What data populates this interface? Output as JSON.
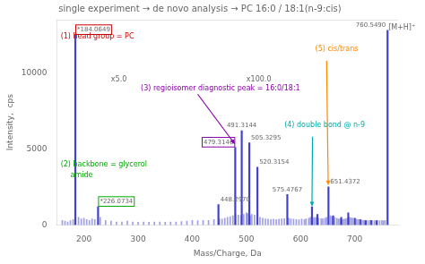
{
  "chart_data": {
    "type": "bar",
    "title": "single experiment → de novo analysis → PC 16:0 / 18:1(n-9:cis)",
    "x_label": "Mass/Charge, Da",
    "y_label": "Intensity,  cps",
    "xlim": [
      150,
      780
    ],
    "ylim": [
      0,
      13500
    ],
    "xticks": [
      200,
      300,
      400,
      500,
      600,
      700
    ],
    "yticks": [
      0,
      5000,
      10000
    ],
    "grid": false,
    "series": [
      {
        "color": "#4040cc",
        "x": [
          160,
          165,
          170,
          175,
          180,
          190,
          195,
          200,
          205,
          210,
          215,
          220,
          230,
          240,
          250,
          260,
          270,
          280,
          290,
          300,
          310,
          320,
          330,
          340,
          350,
          360,
          370,
          380,
          390,
          400,
          410,
          420,
          430,
          440,
          450,
          455,
          460,
          465,
          470,
          475,
          480,
          485,
          490,
          495,
          500,
          502,
          507,
          510,
          515,
          525,
          530,
          535,
          540,
          545,
          550,
          555,
          560,
          565,
          570,
          578,
          582,
          587,
          592,
          597,
          602,
          607,
          610,
          615,
          618,
          622,
          625,
          628,
          633,
          638,
          641,
          645,
          648,
          655,
          658,
          663,
          667,
          670,
          673,
          677,
          680,
          683,
          686,
          690,
          693,
          696,
          703,
          706,
          713,
          716,
          719,
          722,
          726,
          732,
          736,
          742,
          746,
          750,
          753,
          756
        ],
        "values": [
          300,
          250,
          200,
          280,
          350,
          500,
          400,
          450,
          350,
          300,
          400,
          350,
          500,
          300,
          250,
          200,
          200,
          250,
          200,
          180,
          200,
          180,
          200,
          200,
          180,
          200,
          200,
          220,
          250,
          300,
          280,
          300,
          300,
          350,
          400,
          380,
          450,
          500,
          550,
          600,
          700,
          650,
          600,
          700,
          800,
          750,
          600,
          700,
          650,
          500,
          450,
          400,
          380,
          350,
          380,
          350,
          380,
          400,
          420,
          450,
          400,
          380,
          360,
          340,
          380,
          350,
          400,
          450,
          500,
          550,
          480,
          500,
          450,
          420,
          400,
          450,
          500,
          600,
          550,
          500,
          450,
          400,
          380,
          350,
          380,
          400,
          450,
          500,
          480,
          450,
          380,
          350,
          320,
          300,
          320,
          300,
          280,
          300,
          280,
          300,
          280,
          300,
          280,
          300
        ]
      },
      {
        "color": "#4040cc",
        "x": [
          184.0649,
          226.0734,
          448.297,
          479.3146,
          491.3144,
          505.3295,
          520.3154,
          575.4767,
          621.0,
          631.0,
          651.4372,
          660.0,
          675.0,
          688.0,
          700.0,
          710.0,
          720.0,
          730.0,
          740.0,
          760.549
        ],
        "values": [
          12500,
          1200,
          1350,
          5100,
          6200,
          5400,
          3800,
          2000,
          1200,
          700,
          2500,
          600,
          500,
          800,
          450,
          350,
          280,
          300,
          280,
          12800
        ],
        "labels": [
          "*184.0649",
          "*226.0734",
          "448.2970",
          "479.3146",
          "491.3144",
          "505.3295",
          "520.3154",
          "575.4767",
          null,
          null,
          "651.4372",
          null,
          null,
          null,
          null,
          null,
          null,
          null,
          null,
          "760.5490"
        ]
      }
    ],
    "annotations": [
      {
        "text": "(1) head group = PC",
        "color": "#cc0000",
        "x": 157,
        "y": 12600,
        "box_label": "*184.0649"
      },
      {
        "text": "(2) backbone = glycerol",
        "color": "#00aa00",
        "x": 157,
        "y": 4200,
        "box_label": "*226.0734"
      },
      {
        "text": "amide",
        "color": "#00aa00",
        "x": 175,
        "y": 3500
      },
      {
        "text": "(3) regioisomer diagnostic peak = 16:0/18:1",
        "color": "#8800aa",
        "x": 305,
        "y": 9200,
        "box_label": "479.3146",
        "arrow": {
          "from": [
            410,
            8600
          ],
          "to": [
            479,
            5300
          ]
        }
      },
      {
        "text": "(4) double bond @ n-9",
        "color": "#00aaaa",
        "x": 570,
        "y": 6800,
        "arrow": {
          "from": [
            622,
            5800
          ],
          "to": [
            621,
            1200
          ]
        }
      },
      {
        "text": "(5) cis/trans",
        "color": "#ff8800",
        "x": 627,
        "y": 11800,
        "arrow": {
          "from": [
            648,
            10800
          ],
          "to": [
            651,
            2600
          ]
        }
      },
      {
        "text": "[M+H]⁺",
        "x": 762,
        "y": 13200
      },
      {
        "text": "x5.0",
        "x": 250,
        "y": 9800
      },
      {
        "text": "x100.0",
        "x": 500,
        "y": 9800
      }
    ]
  }
}
